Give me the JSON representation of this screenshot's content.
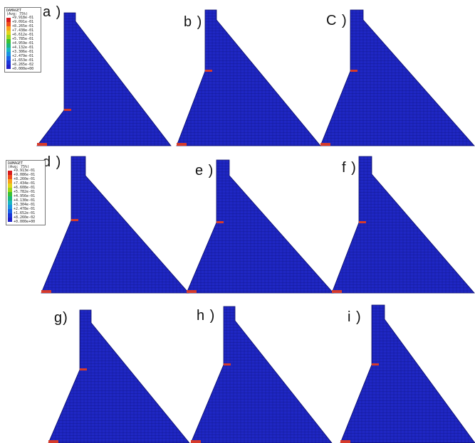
{
  "legend": {
    "title_line1": "DAMAGET",
    "title_line2": "(Avg: 75%)",
    "colors": [
      "#d7191c",
      "#f04e1a",
      "#f9a11b",
      "#e3d41a",
      "#9bd61a",
      "#39c234",
      "#1ab87a",
      "#19b6c0",
      "#1a93e0",
      "#1a63e6",
      "#1a35d8",
      "#2020c8"
    ],
    "values_a": [
      "+9.918e-01",
      "+9.091e-01",
      "+8.265e-01",
      "+7.438e-01",
      "+6.612e-01",
      "+5.785e-01",
      "+4.959e-01",
      "+4.132e-01",
      "+3.306e-01",
      "+2.479e-01",
      "+1.653e-01",
      "+8.265e-02",
      "+0.000e+00"
    ],
    "values_d": [
      "+9.913e-01",
      "+9.086e-01",
      "+8.260e-01",
      "+7.434e-01",
      "+6.608e-01",
      "+5.782e-01",
      "+4.956e-01",
      "+4.130e-01",
      "+3.304e-01",
      "+2.478e-01",
      "+1.652e-01",
      "+8.260e-02",
      "+0.000e+00"
    ]
  },
  "panels": [
    {
      "id": "a",
      "label": "a )"
    },
    {
      "id": "b",
      "label": "b )"
    },
    {
      "id": "c",
      "label": "C )"
    },
    {
      "id": "d",
      "label": "d )"
    },
    {
      "id": "e",
      "label": "e )"
    },
    {
      "id": "f",
      "label": "f )"
    },
    {
      "id": "g",
      "label": "g)"
    },
    {
      "id": "h",
      "label": "h )"
    },
    {
      "id": "i",
      "label": "i )"
    }
  ],
  "colors": {
    "mesh_fill": "#1f27c4",
    "mesh_line": "#0d1170",
    "damage_high": "#d63a2a",
    "damage_edge": "#2fa9c9"
  }
}
